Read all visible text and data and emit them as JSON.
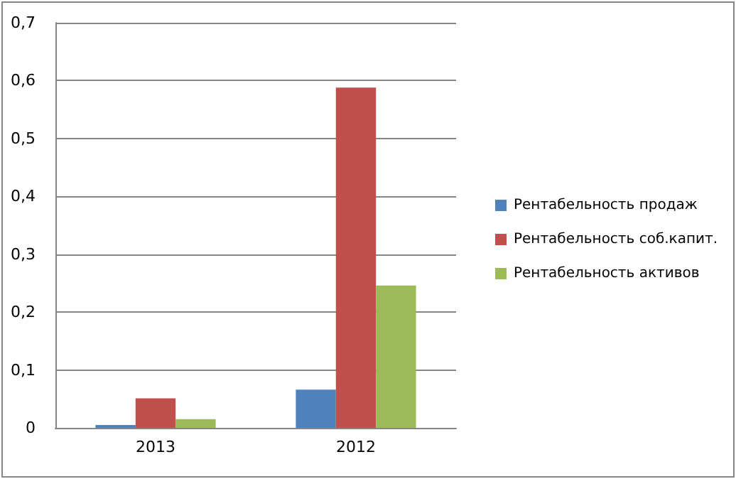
{
  "chart_data": {
    "type": "bar",
    "categories": [
      "2013",
      "2012"
    ],
    "series": [
      {
        "name": "Рентабельность продаж",
        "color": "#4f81bd",
        "values": [
          0.005,
          0.066
        ]
      },
      {
        "name": "Рентабельность соб.капит.",
        "color": "#c0504d",
        "values": [
          0.051,
          0.588
        ]
      },
      {
        "name": "Рентабельность активов",
        "color": "#9bbb59",
        "values": [
          0.015,
          0.246
        ]
      }
    ],
    "ylim": [
      0,
      0.7
    ],
    "yticks": [
      {
        "value": 0,
        "label": "0"
      },
      {
        "value": 0.1,
        "label": "0,1"
      },
      {
        "value": 0.2,
        "label": "0,2"
      },
      {
        "value": 0.3,
        "label": "0,3"
      },
      {
        "value": 0.4,
        "label": "0,4"
      },
      {
        "value": 0.5,
        "label": "0,5"
      },
      {
        "value": 0.6,
        "label": "0,6"
      },
      {
        "value": 0.7,
        "label": "0,7"
      }
    ],
    "grid": "y",
    "legend": "right"
  }
}
